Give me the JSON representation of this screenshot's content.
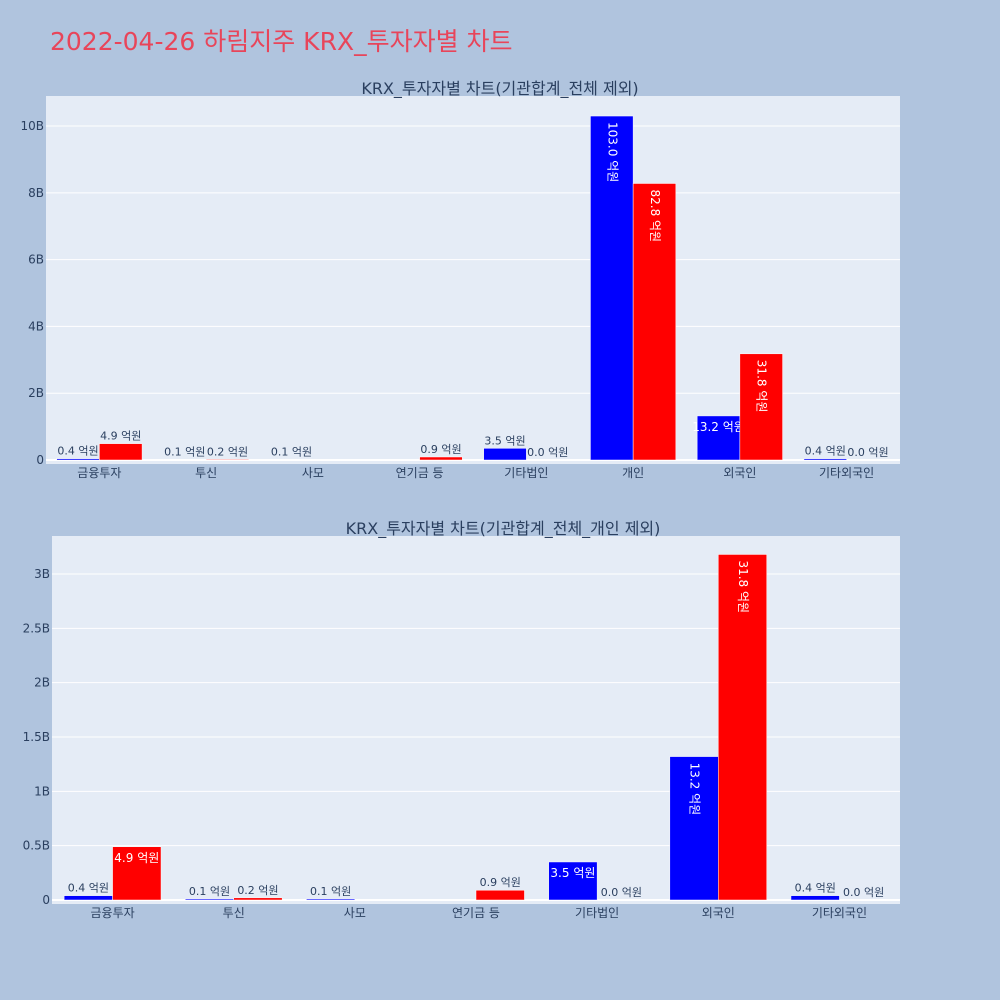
{
  "page_title": "2022-04-26 하림지주 KRX_투자자별 차트",
  "colors": {
    "buy": "#0000ff",
    "sell": "#ff0000",
    "title": "#e8455a",
    "plot_bg": "#e5ecf6",
    "page_bg": "#b0c4de"
  },
  "chart_data": [
    {
      "type": "bar",
      "title": "KRX_투자자별 차트(기관합계_전체 제외)",
      "categories": [
        "금융투자",
        "투신",
        "사모",
        "연기금 등",
        "기타법인",
        "개인",
        "외국인",
        "기타외국인"
      ],
      "series": [
        {
          "values": [
            40000000,
            10000000,
            10000000,
            0,
            350000000,
            10300000000,
            1320000000,
            40000000
          ],
          "labels": [
            "0.4 억원",
            "0.1 억원",
            "0.1 억원",
            "",
            "3.5 억원",
            "103.0 억원",
            "13.2 억원",
            "0.4 억원"
          ]
        },
        {
          "values": [
            490000000,
            20000000,
            0,
            90000000,
            0,
            8280000000,
            3180000000,
            0
          ],
          "labels": [
            "4.9 억원",
            "0.2 억원",
            "",
            "0.9 억원",
            "0.0 억원",
            "82.8 억원",
            "31.8 억원",
            "0.0 억원"
          ]
        }
      ],
      "yticks": [
        0,
        2000000000,
        4000000000,
        6000000000,
        8000000000,
        10000000000
      ],
      "ytick_labels": [
        "0",
        "2B",
        "4B",
        "6B",
        "8B",
        "10B"
      ],
      "ylim": [
        0,
        10900000000
      ],
      "grid": true
    },
    {
      "type": "bar",
      "title": "KRX_투자자별 차트(기관합계_전체_개인 제외)",
      "categories": [
        "금융투자",
        "투신",
        "사모",
        "연기금 등",
        "기타법인",
        "외국인",
        "기타외국인"
      ],
      "series": [
        {
          "values": [
            40000000,
            10000000,
            10000000,
            0,
            350000000,
            1320000000,
            40000000
          ],
          "labels": [
            "0.4 억원",
            "0.1 억원",
            "0.1 억원",
            "",
            "3.5 억원",
            "13.2 억원",
            "0.4 억원"
          ]
        },
        {
          "values": [
            490000000,
            20000000,
            0,
            90000000,
            0,
            3180000000,
            0
          ],
          "labels": [
            "4.9 억원",
            "0.2 억원",
            "",
            "0.9 억원",
            "0.0 억원",
            "31.8 억원",
            "0.0 억원"
          ]
        }
      ],
      "yticks": [
        0,
        500000000,
        1000000000,
        1500000000,
        2000000000,
        2500000000,
        3000000000
      ],
      "ytick_labels": [
        "0",
        "0.5B",
        "1B",
        "1.5B",
        "2B",
        "2.5B",
        "3B"
      ],
      "ylim": [
        0,
        3350000000
      ],
      "grid": true
    }
  ]
}
